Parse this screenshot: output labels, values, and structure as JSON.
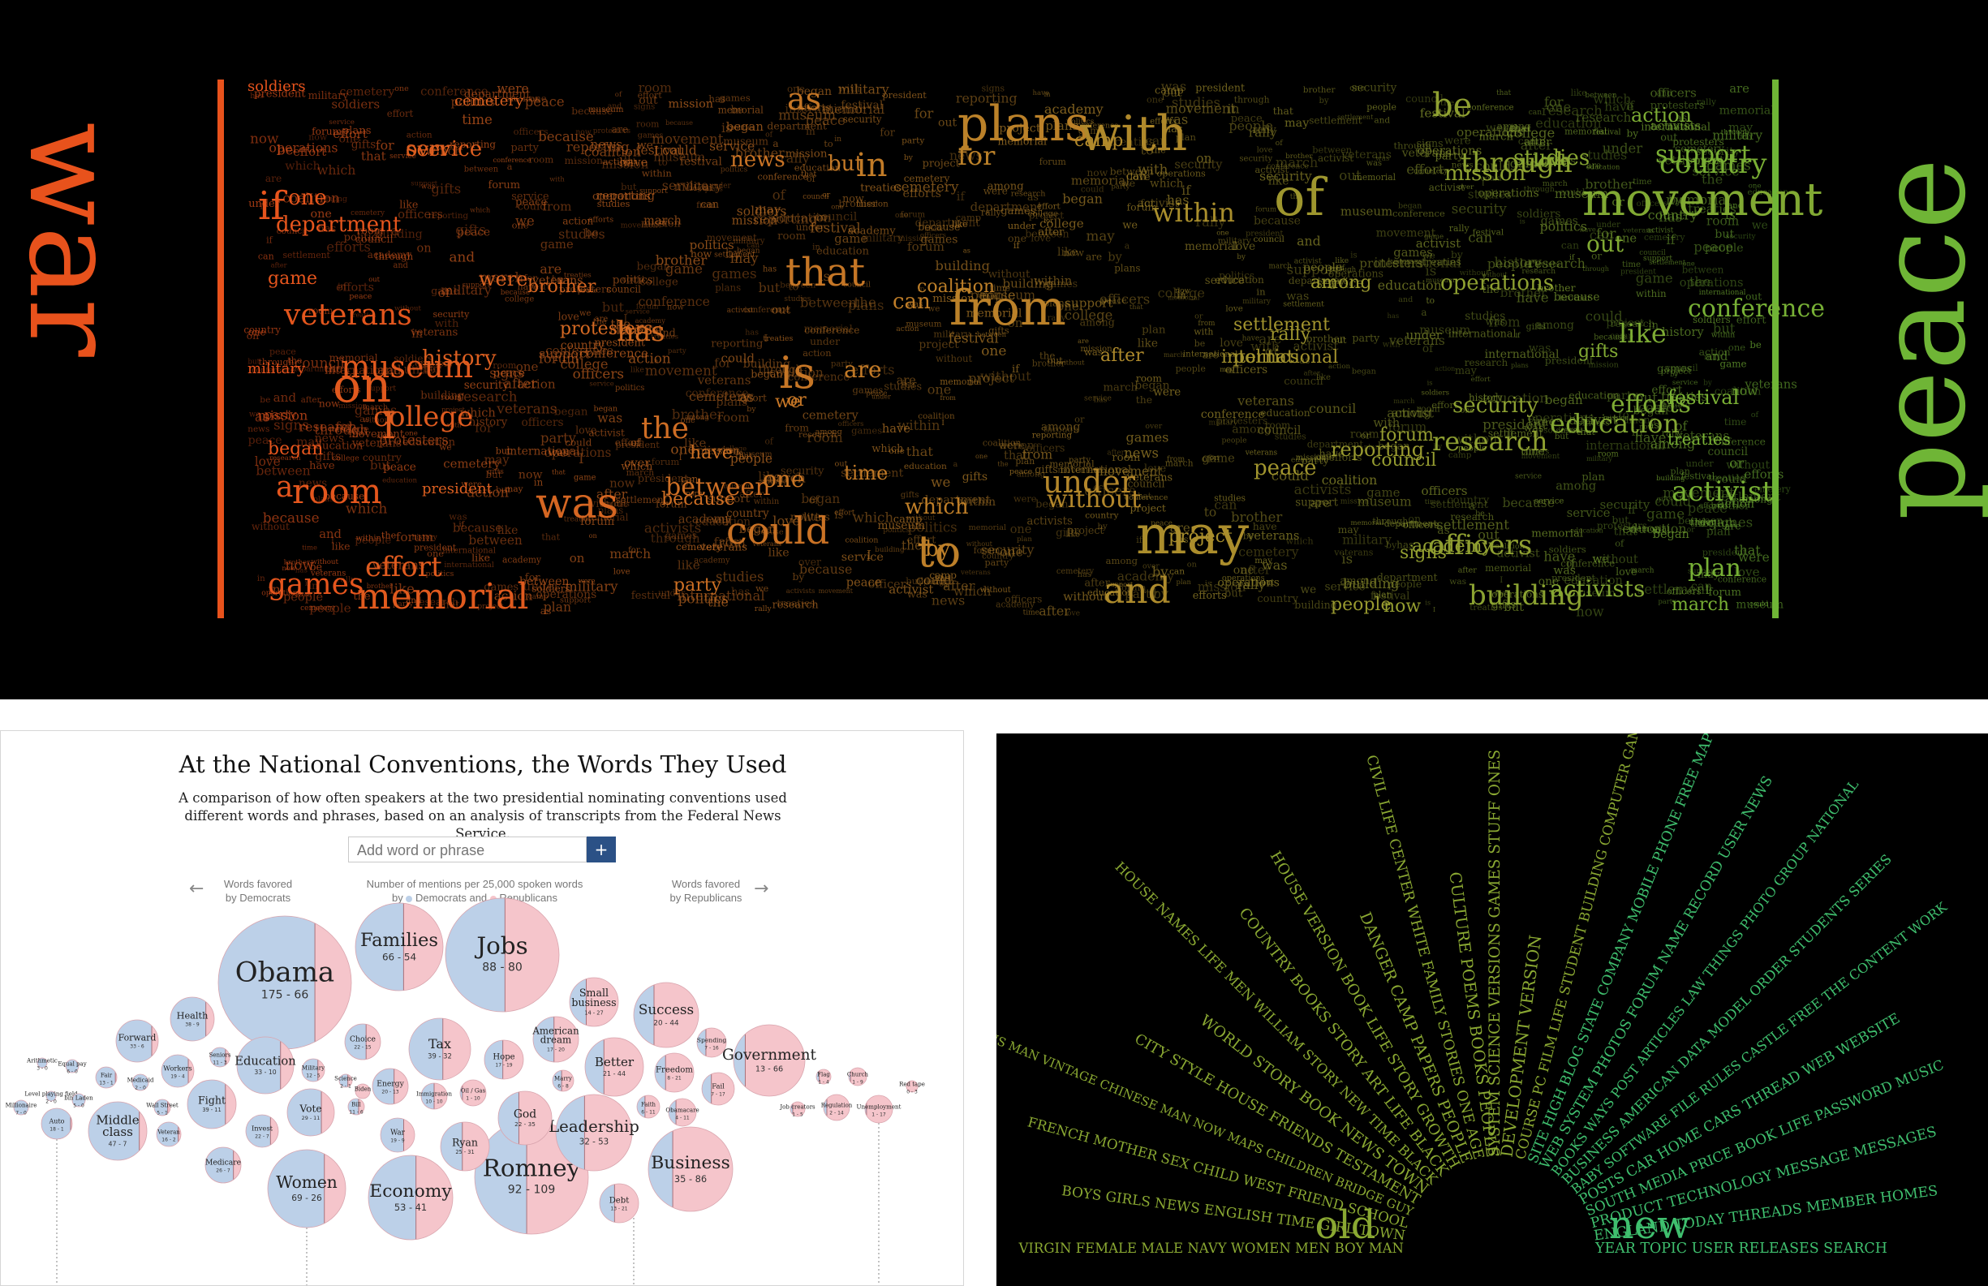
{
  "top": {
    "left_label": "war",
    "right_label": "peace",
    "colors": {
      "war": "#e8521c",
      "peace": "#6fb536",
      "mid": "#b8842a"
    },
    "words": [
      {
        "t": "if",
        "c": "w"
      },
      {
        "t": "department",
        "c": "w"
      },
      {
        "t": "veterans",
        "c": "w"
      },
      {
        "t": "museum",
        "c": "w"
      },
      {
        "t": "on",
        "c": "w"
      },
      {
        "t": "college",
        "c": "w"
      },
      {
        "t": "I",
        "c": "w"
      },
      {
        "t": "room",
        "c": "w"
      },
      {
        "t": "began",
        "c": "w"
      },
      {
        "t": "effort",
        "c": "w"
      },
      {
        "t": "games",
        "c": "w"
      },
      {
        "t": "memorial",
        "c": "w"
      },
      {
        "t": "service",
        "c": "w"
      },
      {
        "t": "one",
        "c": "w"
      },
      {
        "t": "history",
        "c": "w"
      },
      {
        "t": "soldiers",
        "c": "w"
      },
      {
        "t": "cemetery",
        "c": "w"
      },
      {
        "t": "were",
        "c": "w"
      },
      {
        "t": "brother",
        "c": "w"
      },
      {
        "t": "protesters",
        "c": "w"
      },
      {
        "t": "game",
        "c": "w"
      },
      {
        "t": "military",
        "c": "w"
      },
      {
        "t": "over",
        "c": "w"
      },
      {
        "t": "a",
        "c": "w"
      },
      {
        "t": "president",
        "c": "w"
      },
      {
        "t": "was",
        "c": "m"
      },
      {
        "t": "as",
        "c": "m"
      },
      {
        "t": "news",
        "c": "m"
      },
      {
        "t": "has",
        "c": "m"
      },
      {
        "t": "that",
        "c": "m"
      },
      {
        "t": "is",
        "c": "m"
      },
      {
        "t": "the",
        "c": "m"
      },
      {
        "t": "could",
        "c": "m"
      },
      {
        "t": "between",
        "c": "m"
      },
      {
        "t": "one",
        "c": "m"
      },
      {
        "t": "are",
        "c": "m"
      },
      {
        "t": "in",
        "c": "m"
      },
      {
        "t": "but",
        "c": "m"
      },
      {
        "t": "or",
        "c": "m"
      },
      {
        "t": "we",
        "c": "m"
      },
      {
        "t": "have",
        "c": "m"
      },
      {
        "t": "party",
        "c": "m"
      },
      {
        "t": "because",
        "c": "m"
      },
      {
        "t": "plans",
        "c": "m"
      },
      {
        "t": "for",
        "c": "m"
      },
      {
        "t": "from",
        "c": "m"
      },
      {
        "t": "with",
        "c": "m"
      },
      {
        "t": "to",
        "c": "m"
      },
      {
        "t": "by",
        "c": "m"
      },
      {
        "t": "which",
        "c": "m"
      },
      {
        "t": "time",
        "c": "m"
      },
      {
        "t": "under",
        "c": "m"
      },
      {
        "t": "without",
        "c": "m"
      },
      {
        "t": "within",
        "c": "m"
      },
      {
        "t": "can",
        "c": "m"
      },
      {
        "t": "coalition",
        "c": "m"
      },
      {
        "t": "may",
        "c": "m"
      },
      {
        "t": "of",
        "c": "p"
      },
      {
        "t": "and",
        "c": "p"
      },
      {
        "t": "movement",
        "c": "p"
      },
      {
        "t": "be",
        "c": "p"
      },
      {
        "t": "through",
        "c": "p"
      },
      {
        "t": "studies",
        "c": "p"
      },
      {
        "t": "support",
        "c": "p"
      },
      {
        "t": "country",
        "c": "p"
      },
      {
        "t": "out",
        "c": "p"
      },
      {
        "t": "operations",
        "c": "p"
      },
      {
        "t": "among",
        "c": "p"
      },
      {
        "t": "like",
        "c": "p"
      },
      {
        "t": "conference",
        "c": "p"
      },
      {
        "t": "gifts",
        "c": "p"
      },
      {
        "t": "security",
        "c": "p"
      },
      {
        "t": "efforts",
        "c": "p"
      },
      {
        "t": "education",
        "c": "p"
      },
      {
        "t": "research",
        "c": "p"
      },
      {
        "t": "activist",
        "c": "p"
      },
      {
        "t": "officers",
        "c": "p"
      },
      {
        "t": "plan",
        "c": "p"
      },
      {
        "t": "building",
        "c": "p"
      },
      {
        "t": "activists",
        "c": "p"
      },
      {
        "t": "people",
        "c": "p"
      },
      {
        "t": "now",
        "c": "p"
      },
      {
        "t": "march",
        "c": "p"
      },
      {
        "t": "mission",
        "c": "p"
      },
      {
        "t": "action",
        "c": "p"
      },
      {
        "t": "settlement",
        "c": "p"
      },
      {
        "t": "rally",
        "c": "p"
      },
      {
        "t": "peace",
        "c": "p"
      },
      {
        "t": "reporting",
        "c": "p"
      },
      {
        "t": "council",
        "c": "p"
      },
      {
        "t": "international",
        "c": "p"
      },
      {
        "t": "forum",
        "c": "p"
      },
      {
        "t": "camp",
        "c": "p"
      },
      {
        "t": "politics",
        "c": "p"
      },
      {
        "t": "after",
        "c": "p"
      },
      {
        "t": "project",
        "c": "p"
      },
      {
        "t": "academy",
        "c": "p"
      },
      {
        "t": "festival",
        "c": "p"
      },
      {
        "t": "treaties",
        "c": "p"
      },
      {
        "t": "signs",
        "c": "p"
      },
      {
        "t": "love",
        "c": "p"
      }
    ]
  },
  "conventions": {
    "title": "At the National Conventions, the Words They Used",
    "subtitle": "A comparison of how often speakers at the two presidential nominating conventions used different words and phrases, based on an analysis of transcripts from the Federal News Service.",
    "search_placeholder": "Add word or phrase",
    "add_label": "+",
    "left_note_1": "Words favored",
    "left_note_2": "by Democrats",
    "center_note_1": "Number of mentions per 25,000 spoken words",
    "center_note_2_a": "by",
    "center_note_2_b": "Democrats and",
    "center_note_2_c": "Republicans",
    "right_note_1": "Words favored",
    "right_note_2": "by Republicans",
    "arrow_left": "←",
    "arrow_right": "→",
    "colors": {
      "dem": "#bcd0e8",
      "rep": "#f5c5cb",
      "stroke": "#e9a1ab"
    },
    "chart_data": {
      "type": "bubble",
      "series": [
        {
          "name": "Democrats"
        },
        {
          "name": "Republicans"
        }
      ],
      "bubbles": [
        {
          "word": "Obama",
          "dem": 175,
          "rep": 66
        },
        {
          "word": "Families",
          "dem": 66,
          "rep": 54
        },
        {
          "word": "Jobs",
          "dem": 88,
          "rep": 80
        },
        {
          "word": "Romney",
          "dem": 92,
          "rep": 109
        },
        {
          "word": "Women",
          "dem": 69,
          "rep": 26
        },
        {
          "word": "Economy",
          "dem": 53,
          "rep": 41
        },
        {
          "word": "Business",
          "dem": 35,
          "rep": 86
        },
        {
          "word": "Leadership",
          "dem": 32,
          "rep": 53
        },
        {
          "word": "Government",
          "dem": 13,
          "rep": 66
        },
        {
          "word": "Tax",
          "dem": 39,
          "rep": 32
        },
        {
          "word": "Success",
          "dem": 20,
          "rep": 44
        },
        {
          "word": "Health",
          "dem": 38,
          "rep": 9
        },
        {
          "word": "Forward",
          "dem": 33,
          "rep": 6
        },
        {
          "word": "Education",
          "dem": 33,
          "rep": 10
        },
        {
          "word": "Fight",
          "dem": 39,
          "rep": 11
        },
        {
          "word": "Middle class",
          "dem": 47,
          "rep": 7
        },
        {
          "word": "Vote",
          "dem": 29,
          "rep": 11
        },
        {
          "word": "Ryan",
          "dem": 25,
          "rep": 31
        },
        {
          "word": "God",
          "dem": 22,
          "rep": 35
        },
        {
          "word": "Better",
          "dem": 21,
          "rep": 44
        },
        {
          "word": "American dream",
          "dem": 17,
          "rep": 20
        },
        {
          "word": "Small business",
          "dem": 14,
          "rep": 27
        },
        {
          "word": "Choice",
          "dem": 22,
          "rep": 15
        },
        {
          "word": "Hope",
          "dem": 17,
          "rep": 19
        },
        {
          "word": "Energy",
          "dem": 20,
          "rep": 13
        },
        {
          "word": "Immigration",
          "dem": 10,
          "rep": 10
        },
        {
          "word": "Oil / Gas",
          "dem": 1,
          "rep": 10
        },
        {
          "word": "War",
          "dem": 19,
          "rep": 9
        },
        {
          "word": "Invest",
          "dem": 22,
          "rep": 7
        },
        {
          "word": "Medicare",
          "dem": 26,
          "rep": 7
        },
        {
          "word": "Workers",
          "dem": 19,
          "rep": 4
        },
        {
          "word": "Veteran",
          "dem": 16,
          "rep": 2
        },
        {
          "word": "Wall Street",
          "dem": 5,
          "rep": 1
        },
        {
          "word": "Seniors",
          "dem": 11,
          "rep": 3
        },
        {
          "word": "Military",
          "dem": 12,
          "rep": 5
        },
        {
          "word": "Science",
          "dem": 2,
          "rep": 1
        },
        {
          "word": "Bill",
          "dem": 11,
          "rep": 6
        },
        {
          "word": "Biden",
          "dem": "",
          "rep": ""
        },
        {
          "word": "Freedom",
          "dem": 8,
          "rep": 21
        },
        {
          "word": "Spending",
          "dem": 7,
          "rep": 16
        },
        {
          "word": "Fail",
          "dem": 7,
          "rep": 17
        },
        {
          "word": "Marry",
          "dem": 6,
          "rep": 8
        },
        {
          "word": "Faith",
          "dem": 6,
          "rep": 11
        },
        {
          "word": "Obamacare",
          "dem": 4,
          "rep": 11
        },
        {
          "word": "Debt",
          "dem": 13,
          "rep": 21
        },
        {
          "word": "Job creators",
          "dem": 1,
          "rep": 5
        },
        {
          "word": "Flag",
          "dem": 1,
          "rep": 4
        },
        {
          "word": "Church",
          "dem": 1,
          "rep": 9
        },
        {
          "word": "Regulation",
          "dem": 2,
          "rep": 14
        },
        {
          "word": "Unemployment",
          "dem": 1,
          "rep": 17
        },
        {
          "word": "Red tape",
          "dem": 0,
          "rep": 3
        },
        {
          "word": "Auto",
          "dem": 18,
          "rep": 1
        },
        {
          "word": "Fair",
          "dem": 13,
          "rep": 1
        },
        {
          "word": "Medicaid",
          "dem": 2,
          "rep": 0
        },
        {
          "word": "Arithmetic",
          "dem": 3,
          "rep": 0
        },
        {
          "word": "Equal pay",
          "dem": 6,
          "rep": 0
        },
        {
          "word": "Level playing field",
          "dem": 2,
          "rep": 0
        },
        {
          "word": "bin Laden",
          "dem": 5,
          "rep": 0
        },
        {
          "word": "Millionaire",
          "dem": 7,
          "rep": 0
        }
      ]
    }
  },
  "oldnew": {
    "old_label": "old",
    "new_label": "new",
    "colors": {
      "old": "#8aa832",
      "new": "#3fbf6e"
    },
    "rays": [
      {
        "t": "VIRGIN FEMALE MALE NAVY WOMEN MEN BOY MAN",
        "g": "o"
      },
      {
        "t": "BOYS GIRLS NEWS ENGLISH TIME GIRL TOWN",
        "g": "o"
      },
      {
        "t": "FRENCH MOTHER SEX CHILD WEST FRIEND SCHOOL",
        "g": "o"
      },
      {
        "t": "NAME JOHNS MAN VINTAGE CHINESE MAN NOW MAPS CHILDREN BRIDGE GUY",
        "g": "o"
      },
      {
        "t": "CITY STYLE HOUSE FRIENDS TESTAMENT",
        "g": "o"
      },
      {
        "t": "WORLD STORY BOOK NEWS TOWN",
        "g": "o"
      },
      {
        "t": "HOUSE NAMES LIFE MEN WILLIAM STORY NEW TIME BLACK",
        "g": "o"
      },
      {
        "t": "COUNTRY BOOKS STORY ART LIFE BLACK",
        "g": "o"
      },
      {
        "t": "HOUSE VERSION BOOK LIFE STORY GROWTH",
        "g": "o"
      },
      {
        "t": "DANGER CAMP PAPERS PEOPLE",
        "g": "o"
      },
      {
        "t": "CIVIL LIFE CENTER WHITE FAMILY STORIES ONE AGE",
        "g": "o"
      },
      {
        "t": "CULTURE POEMS BOOKS PEOPLE",
        "g": "o"
      },
      {
        "t": "SYSTEM SCIENCE VERSIONS GAMES STUFF ONES",
        "g": "o"
      },
      {
        "t": "DEVELOPMENT VERSION",
        "g": "o"
      },
      {
        "t": "COURSE PC FILM LIFE STUDENT BUILDING COMPUTER GAME WORLD",
        "g": "o"
      },
      {
        "t": "SITE HIGH BLOG STATE COMPANY MOBILE PHONE FREE MAP",
        "g": "n"
      },
      {
        "t": "WEB SYSTEM PHOTOS FORUM NAME RECORD USER NEWS",
        "g": "n"
      },
      {
        "t": "BOOKS WAYS POST ARTICLES LAW THINGS PHOTO GROUP NATIONAL",
        "g": "n"
      },
      {
        "t": "BUSINESS AMERICAN DATA MODEL ORDER STUDENTS SERIES",
        "g": "n"
      },
      {
        "t": "BABY SOFTWARE FILE RULES CASTLE FREE THE CONTENT WORK",
        "g": "n"
      },
      {
        "t": "POSTS CAR HOME CARS THREAD WEB WEBSITE",
        "g": "n"
      },
      {
        "t": "SOUTH MEDIA PRICE BOOK LIFE PASSWORD MUSIC",
        "g": "n"
      },
      {
        "t": "PRODUCT TECHNOLOGY MESSAGE MESSAGES",
        "g": "n"
      },
      {
        "t": "ENGLAND TODAY THREADS MEMBER HOMES",
        "g": "n"
      },
      {
        "t": "YEAR TOPIC USER RELEASES SEARCH",
        "g": "n"
      }
    ]
  }
}
